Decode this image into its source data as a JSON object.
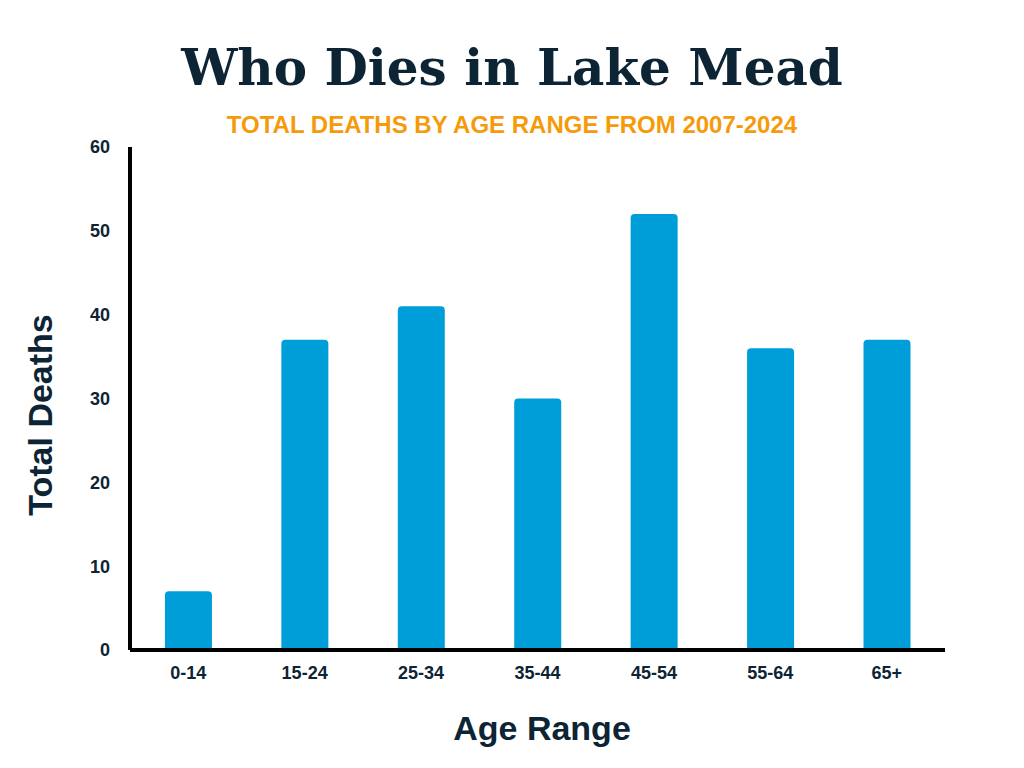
{
  "chart_data": {
    "type": "bar",
    "title": "Who Dies in Lake Mead",
    "subtitle": "TOTAL DEATHS BY AGE RANGE FROM 2007-2024",
    "x_label": "Age Range",
    "y_label": "Total Deaths",
    "categories": [
      "0-14",
      "15-24",
      "25-34",
      "35-44",
      "45-54",
      "55-64",
      "65+"
    ],
    "values": [
      7,
      37,
      41,
      30,
      52,
      36,
      37
    ],
    "color": "#009ed8",
    "ylim": [
      0,
      60
    ],
    "yticks": [
      0,
      10,
      20,
      30,
      40,
      50,
      60
    ],
    "grid": false
  }
}
